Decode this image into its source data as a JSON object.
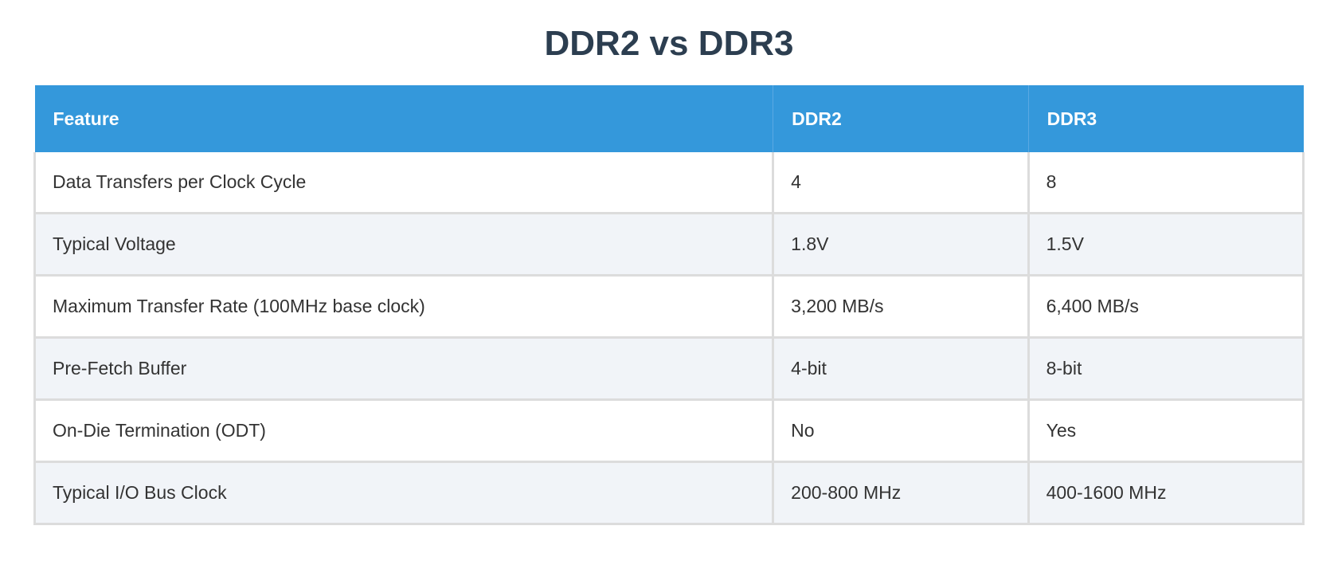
{
  "title": "DDR2 vs DDR3",
  "table": {
    "headers": [
      "Feature",
      "DDR2",
      "DDR3"
    ],
    "rows": [
      [
        "Data Transfers per Clock Cycle",
        "4",
        "8"
      ],
      [
        "Typical Voltage",
        "1.8V",
        "1.5V"
      ],
      [
        "Maximum Transfer Rate (100MHz base clock)",
        "3,200 MB/s",
        "6,400 MB/s"
      ],
      [
        "Pre-Fetch Buffer",
        "4-bit",
        "8-bit"
      ],
      [
        "On-Die Termination (ODT)",
        "No",
        "Yes"
      ],
      [
        "Typical I/O Bus Clock",
        "200-800 MHz",
        "400-1600 MHz"
      ]
    ]
  },
  "colors": {
    "header_bg": "#3498db",
    "title": "#2c3e50",
    "alt_row": "#f1f4f8"
  }
}
